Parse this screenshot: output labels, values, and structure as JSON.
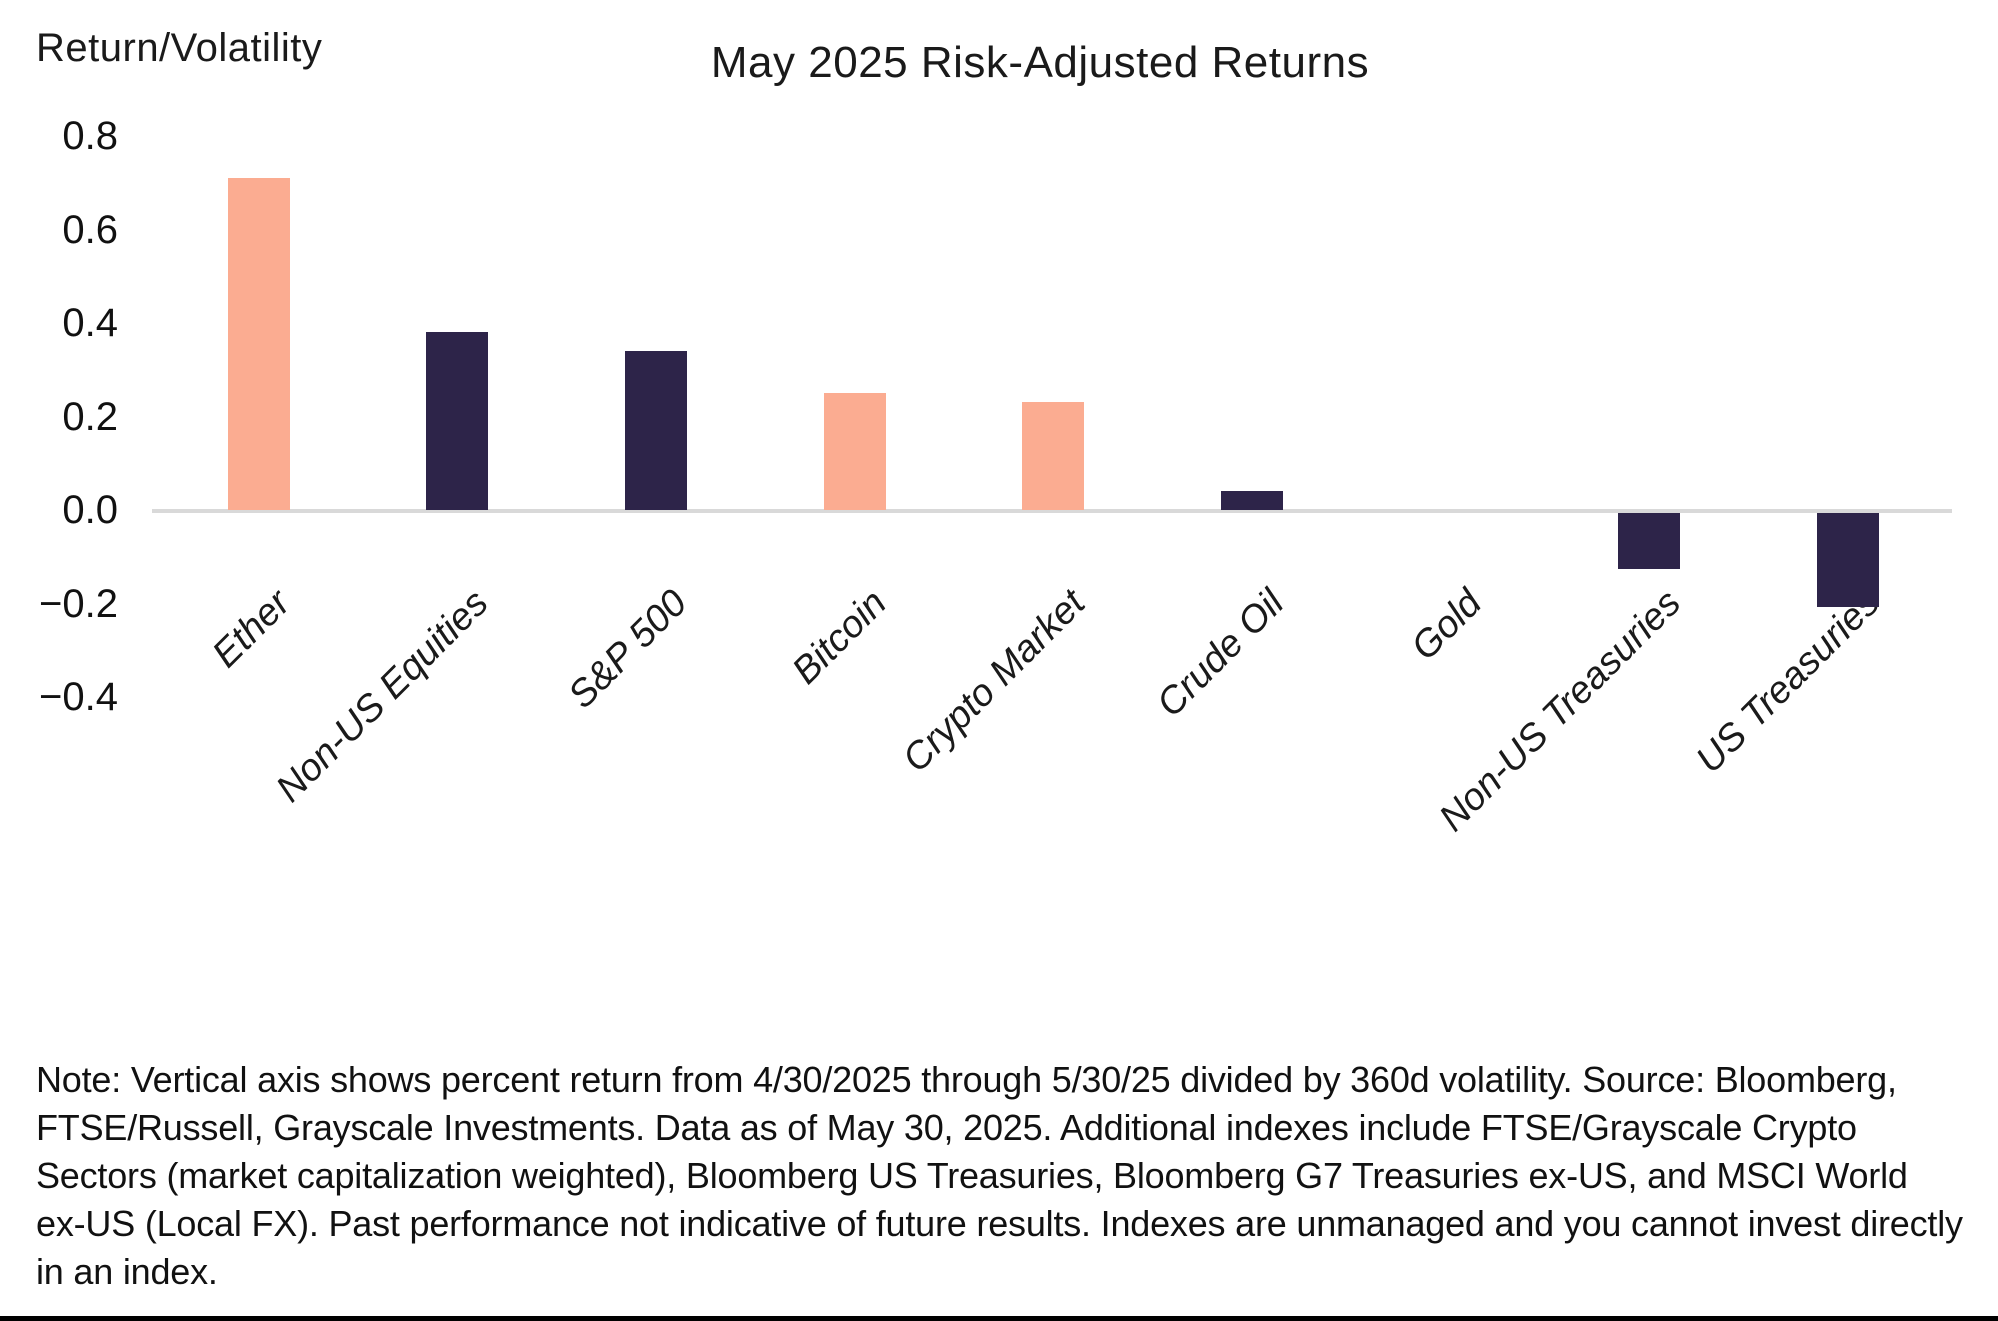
{
  "chart_data": {
    "type": "bar",
    "title": "May 2025 Risk-Adjusted Returns",
    "ylabel": "Return/Volatility",
    "xlabel": "",
    "categories": [
      "Ether",
      "Non-US Equities",
      "S&P 500",
      "Bitcoin",
      "Crypto Market",
      "Crude Oil",
      "Gold",
      "Non-US Treasuries",
      "US Treasuries"
    ],
    "values": [
      0.71,
      0.38,
      0.34,
      0.25,
      0.23,
      0.04,
      0.0,
      -0.12,
      -0.2
    ],
    "bar_colors": [
      "#FBAC91",
      "#2D2449",
      "#2D2449",
      "#FBAC91",
      "#FBAC91",
      "#2D2449",
      "#2D2449",
      "#2D2449",
      "#2D2449"
    ],
    "color_legend": {
      "crypto_assets": "#FBAC91",
      "traditional_assets": "#2D2449"
    },
    "yticks": [
      0.8,
      0.6,
      0.4,
      0.2,
      0.0,
      -0.2,
      -0.4
    ],
    "ylim": [
      -0.45,
      0.85
    ],
    "grid": false,
    "legend_position": "none",
    "zero_line_color": "#D9D9D9"
  },
  "note": "Note: Vertical axis shows percent return from 4/30/2025 through 5/30/25 divided by 360d volatility. Source: Bloomberg, FTSE/Russell, Grayscale Investments. Data as of May 30, 2025. Additional indexes include FTSE/Grayscale Crypto Sectors (market capitalization weighted), Bloomberg US Treasuries, Bloomberg G7 Treasuries ex-US, and MSCI World ex-US (Local FX). Past performance not indicative of future results. Indexes are unmanaged and you cannot invest directly in an index."
}
